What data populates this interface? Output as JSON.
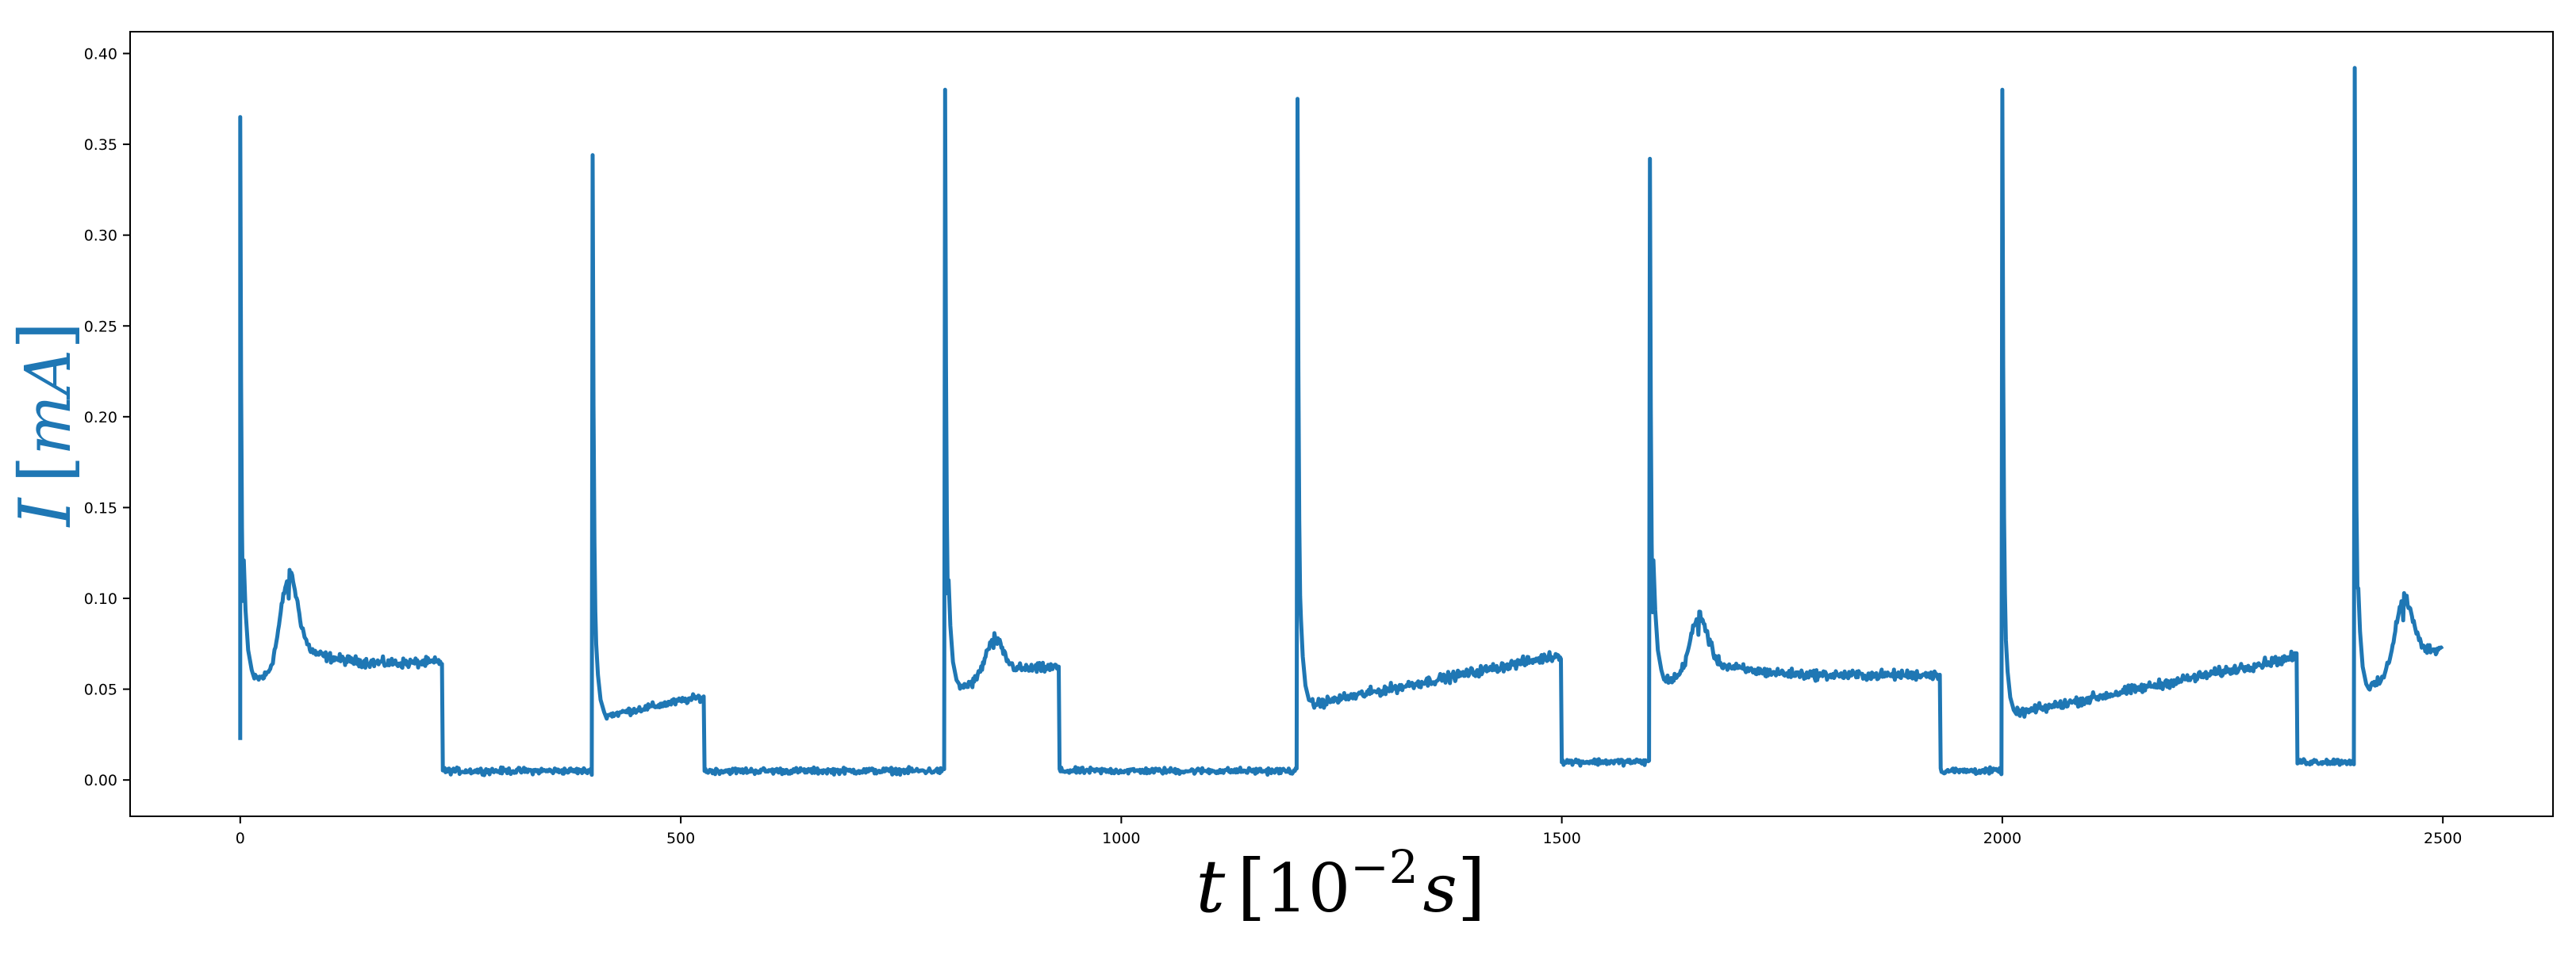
{
  "chart_data": {
    "type": "line",
    "title": "",
    "xlabel": "t [10^-2 s]",
    "ylabel": "I [mA]",
    "xlabel_parts": {
      "var": "t",
      "base": "10",
      "exp": "−2",
      "unit": "s"
    },
    "ylabel_parts": {
      "var": "I",
      "unit": "mA"
    },
    "xlim": [
      -125,
      2625
    ],
    "ylim": [
      -0.02,
      0.412
    ],
    "x_ticks": [
      0,
      500,
      1000,
      1500,
      2000,
      2500
    ],
    "y_ticks": [
      0.0,
      0.05,
      0.1,
      0.15,
      0.2,
      0.25,
      0.3,
      0.35,
      0.4
    ],
    "x_tick_labels": [
      "0",
      "500",
      "1000",
      "1500",
      "2000",
      "2500"
    ],
    "y_tick_labels": [
      "0.00",
      "0.05",
      "0.10",
      "0.15",
      "0.20",
      "0.25",
      "0.30",
      "0.35",
      "0.40"
    ],
    "grid": false,
    "legend": "none",
    "color": "#1f77b4",
    "ylabel_color": "#1f77b4",
    "segments": [
      {
        "x0": 0,
        "x1": 230,
        "peak": 0.365,
        "mode": "active",
        "start": 0.055,
        "end": 0.064,
        "bump": 0.108,
        "noise": 0.004
      },
      {
        "x0": 230,
        "x1": 400,
        "mode": "flat",
        "level": 0.005,
        "noise": 0.0025
      },
      {
        "x0": 400,
        "x1": 527,
        "peak": 0.344,
        "mode": "rise",
        "start": 0.034,
        "end": 0.046,
        "noise": 0.003
      },
      {
        "x0": 527,
        "x1": 800,
        "mode": "flat",
        "level": 0.005,
        "noise": 0.0025
      },
      {
        "x0": 800,
        "x1": 930,
        "peak": 0.38,
        "mode": "active",
        "start": 0.05,
        "end": 0.06,
        "bump": 0.072,
        "noise": 0.004
      },
      {
        "x0": 930,
        "x1": 1200,
        "mode": "flat",
        "level": 0.005,
        "noise": 0.0025
      },
      {
        "x0": 1200,
        "x1": 1500,
        "peak": 0.375,
        "mode": "rise",
        "start": 0.04,
        "end": 0.069,
        "noise": 0.004
      },
      {
        "x0": 1500,
        "x1": 1600,
        "mode": "flat",
        "level": 0.01,
        "noise": 0.0025
      },
      {
        "x0": 1600,
        "x1": 1930,
        "peak": 0.342,
        "mode": "active",
        "start": 0.055,
        "end": 0.058,
        "bump": 0.088,
        "noise": 0.004
      },
      {
        "x0": 1930,
        "x1": 2000,
        "mode": "flat",
        "level": 0.005,
        "noise": 0.0025
      },
      {
        "x0": 2000,
        "x1": 2335,
        "peak": 0.38,
        "mode": "rise",
        "start": 0.035,
        "end": 0.068,
        "noise": 0.004
      },
      {
        "x0": 2335,
        "x1": 2400,
        "mode": "flat",
        "level": 0.01,
        "noise": 0.0025
      },
      {
        "x0": 2400,
        "x1": 2500,
        "peak": 0.392,
        "mode": "rise",
        "start": 0.048,
        "end": 0.066,
        "bump": 0.088,
        "noise": 0.004
      }
    ]
  }
}
